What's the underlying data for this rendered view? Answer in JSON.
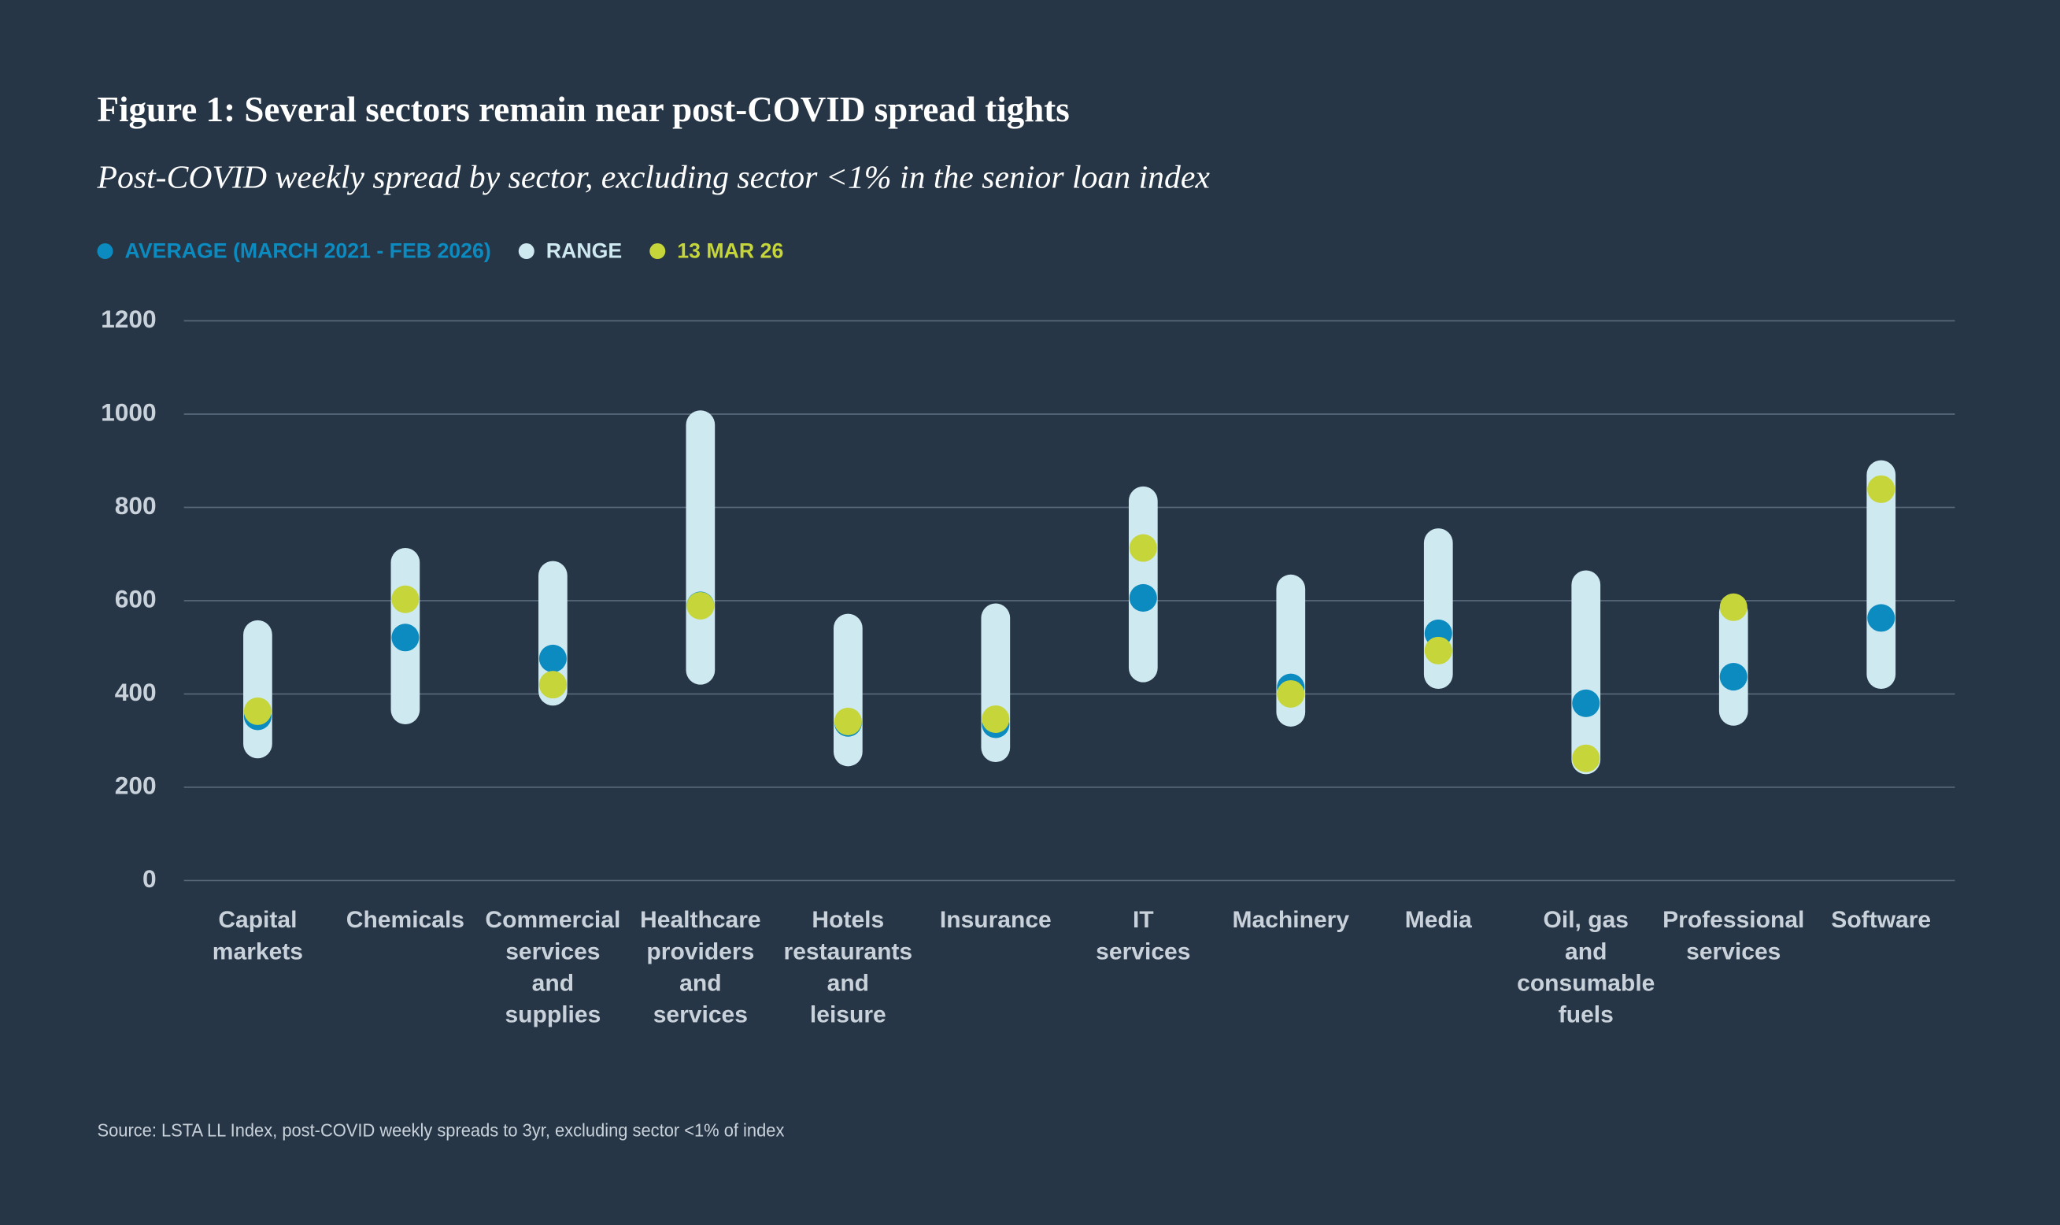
{
  "chart_data": {
    "type": "range",
    "title": "Figure 1: Several sectors remain near post-COVID spread tights",
    "subtitle": "Post-COVID weekly spread by sector, excluding sector <1% in the senior loan index",
    "source": "Source: LSTA LL Index, post-COVID weekly spreads to 3yr, excluding sector <1% of index",
    "categories": [
      "Capital\nmarkets",
      "Chemicals",
      "Commercial\nservices\nand\nsupplies",
      "Healthcare\nproviders\nand\nservices",
      "Hotels\nrestaurants\nand\nleisure",
      "Insurance",
      "IT\nservices",
      "Machinery",
      "Media",
      "Oil, gas\nand\nconsumable\nfuels",
      "Professional\nservices",
      "Software"
    ],
    "series": [
      {
        "name": "AVERAGE (MARCH 2021 - FEB 2026)",
        "color": "#0b8bc0",
        "values": [
          352,
          521,
          476,
          590,
          338,
          335,
          606,
          414,
          530,
          380,
          437,
          563
        ]
      },
      {
        "name": "RANGE",
        "color": "#cfe9f1",
        "low": [
          262,
          335,
          375,
          420,
          245,
          254,
          425,
          330,
          411,
          228,
          332,
          411
        ],
        "high": [
          558,
          713,
          685,
          1008,
          572,
          594,
          845,
          656,
          755,
          665,
          606,
          901
        ]
      },
      {
        "name": "13 MAR 26",
        "color": "#c6d63a",
        "values": [
          363,
          603,
          420,
          589,
          341,
          346,
          713,
          400,
          493,
          262,
          586,
          839
        ]
      }
    ],
    "ylim": [
      0,
      1200
    ],
    "yticks": [
      0,
      200,
      400,
      600,
      800,
      1000,
      1200
    ],
    "grid": true
  }
}
